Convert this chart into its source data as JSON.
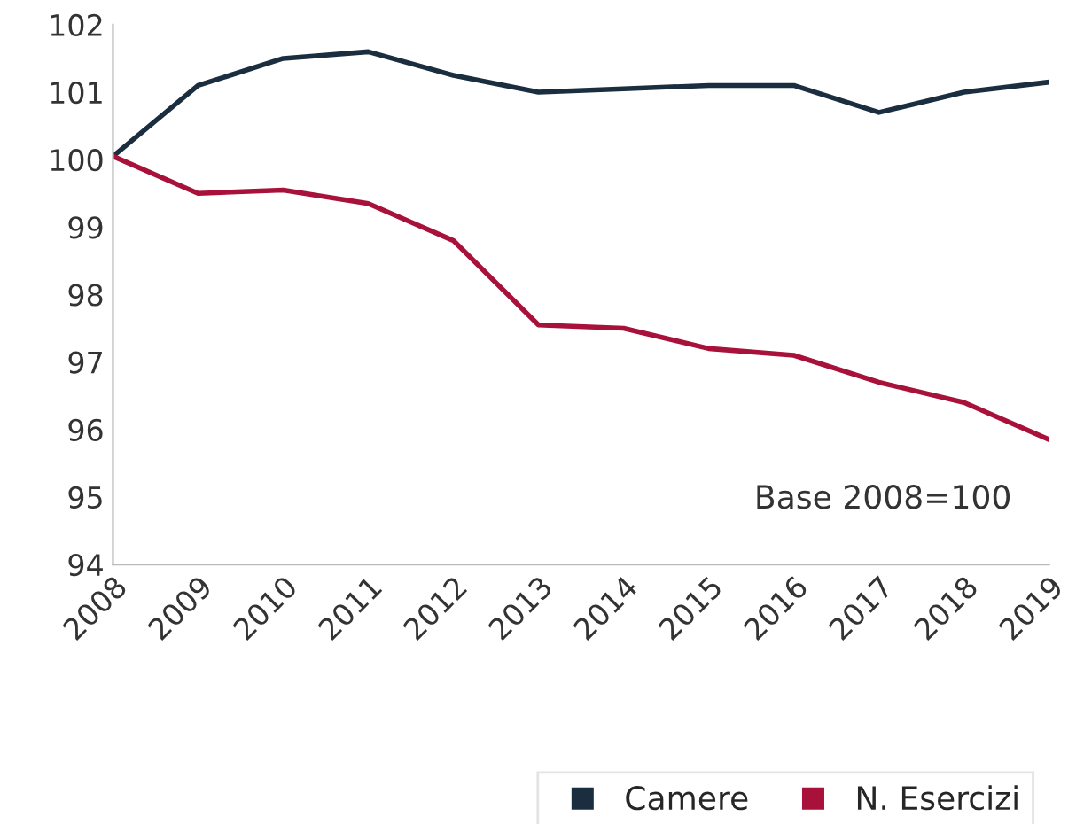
{
  "chart_data": {
    "type": "line",
    "x": [
      2008,
      2009,
      2010,
      2011,
      2012,
      2013,
      2014,
      2015,
      2016,
      2017,
      2018,
      2019
    ],
    "series": [
      {
        "name": "Camere",
        "color": "#1a2e40",
        "values": [
          100.05,
          101.1,
          101.5,
          101.6,
          101.25,
          101.0,
          101.05,
          101.1,
          101.1,
          100.7,
          101.0,
          101.15
        ]
      },
      {
        "name": "N. Esercizi",
        "color": "#a8123a",
        "values": [
          100.05,
          99.5,
          99.55,
          99.35,
          98.8,
          97.55,
          97.5,
          97.2,
          97.1,
          96.7,
          96.4,
          95.85
        ]
      }
    ],
    "xlim": [
      2008,
      2019
    ],
    "xticks": [
      2008,
      2009,
      2010,
      2011,
      2012,
      2013,
      2014,
      2015,
      2016,
      2017,
      2018,
      2019
    ],
    "ylim": [
      94,
      102
    ],
    "yticks": [
      94,
      95,
      96,
      97,
      98,
      99,
      100,
      101,
      102
    ],
    "annotations": [
      "Base 2008=100"
    ],
    "grid": false,
    "legend": "bottom right",
    "marker": "none",
    "line_style": "solid"
  }
}
